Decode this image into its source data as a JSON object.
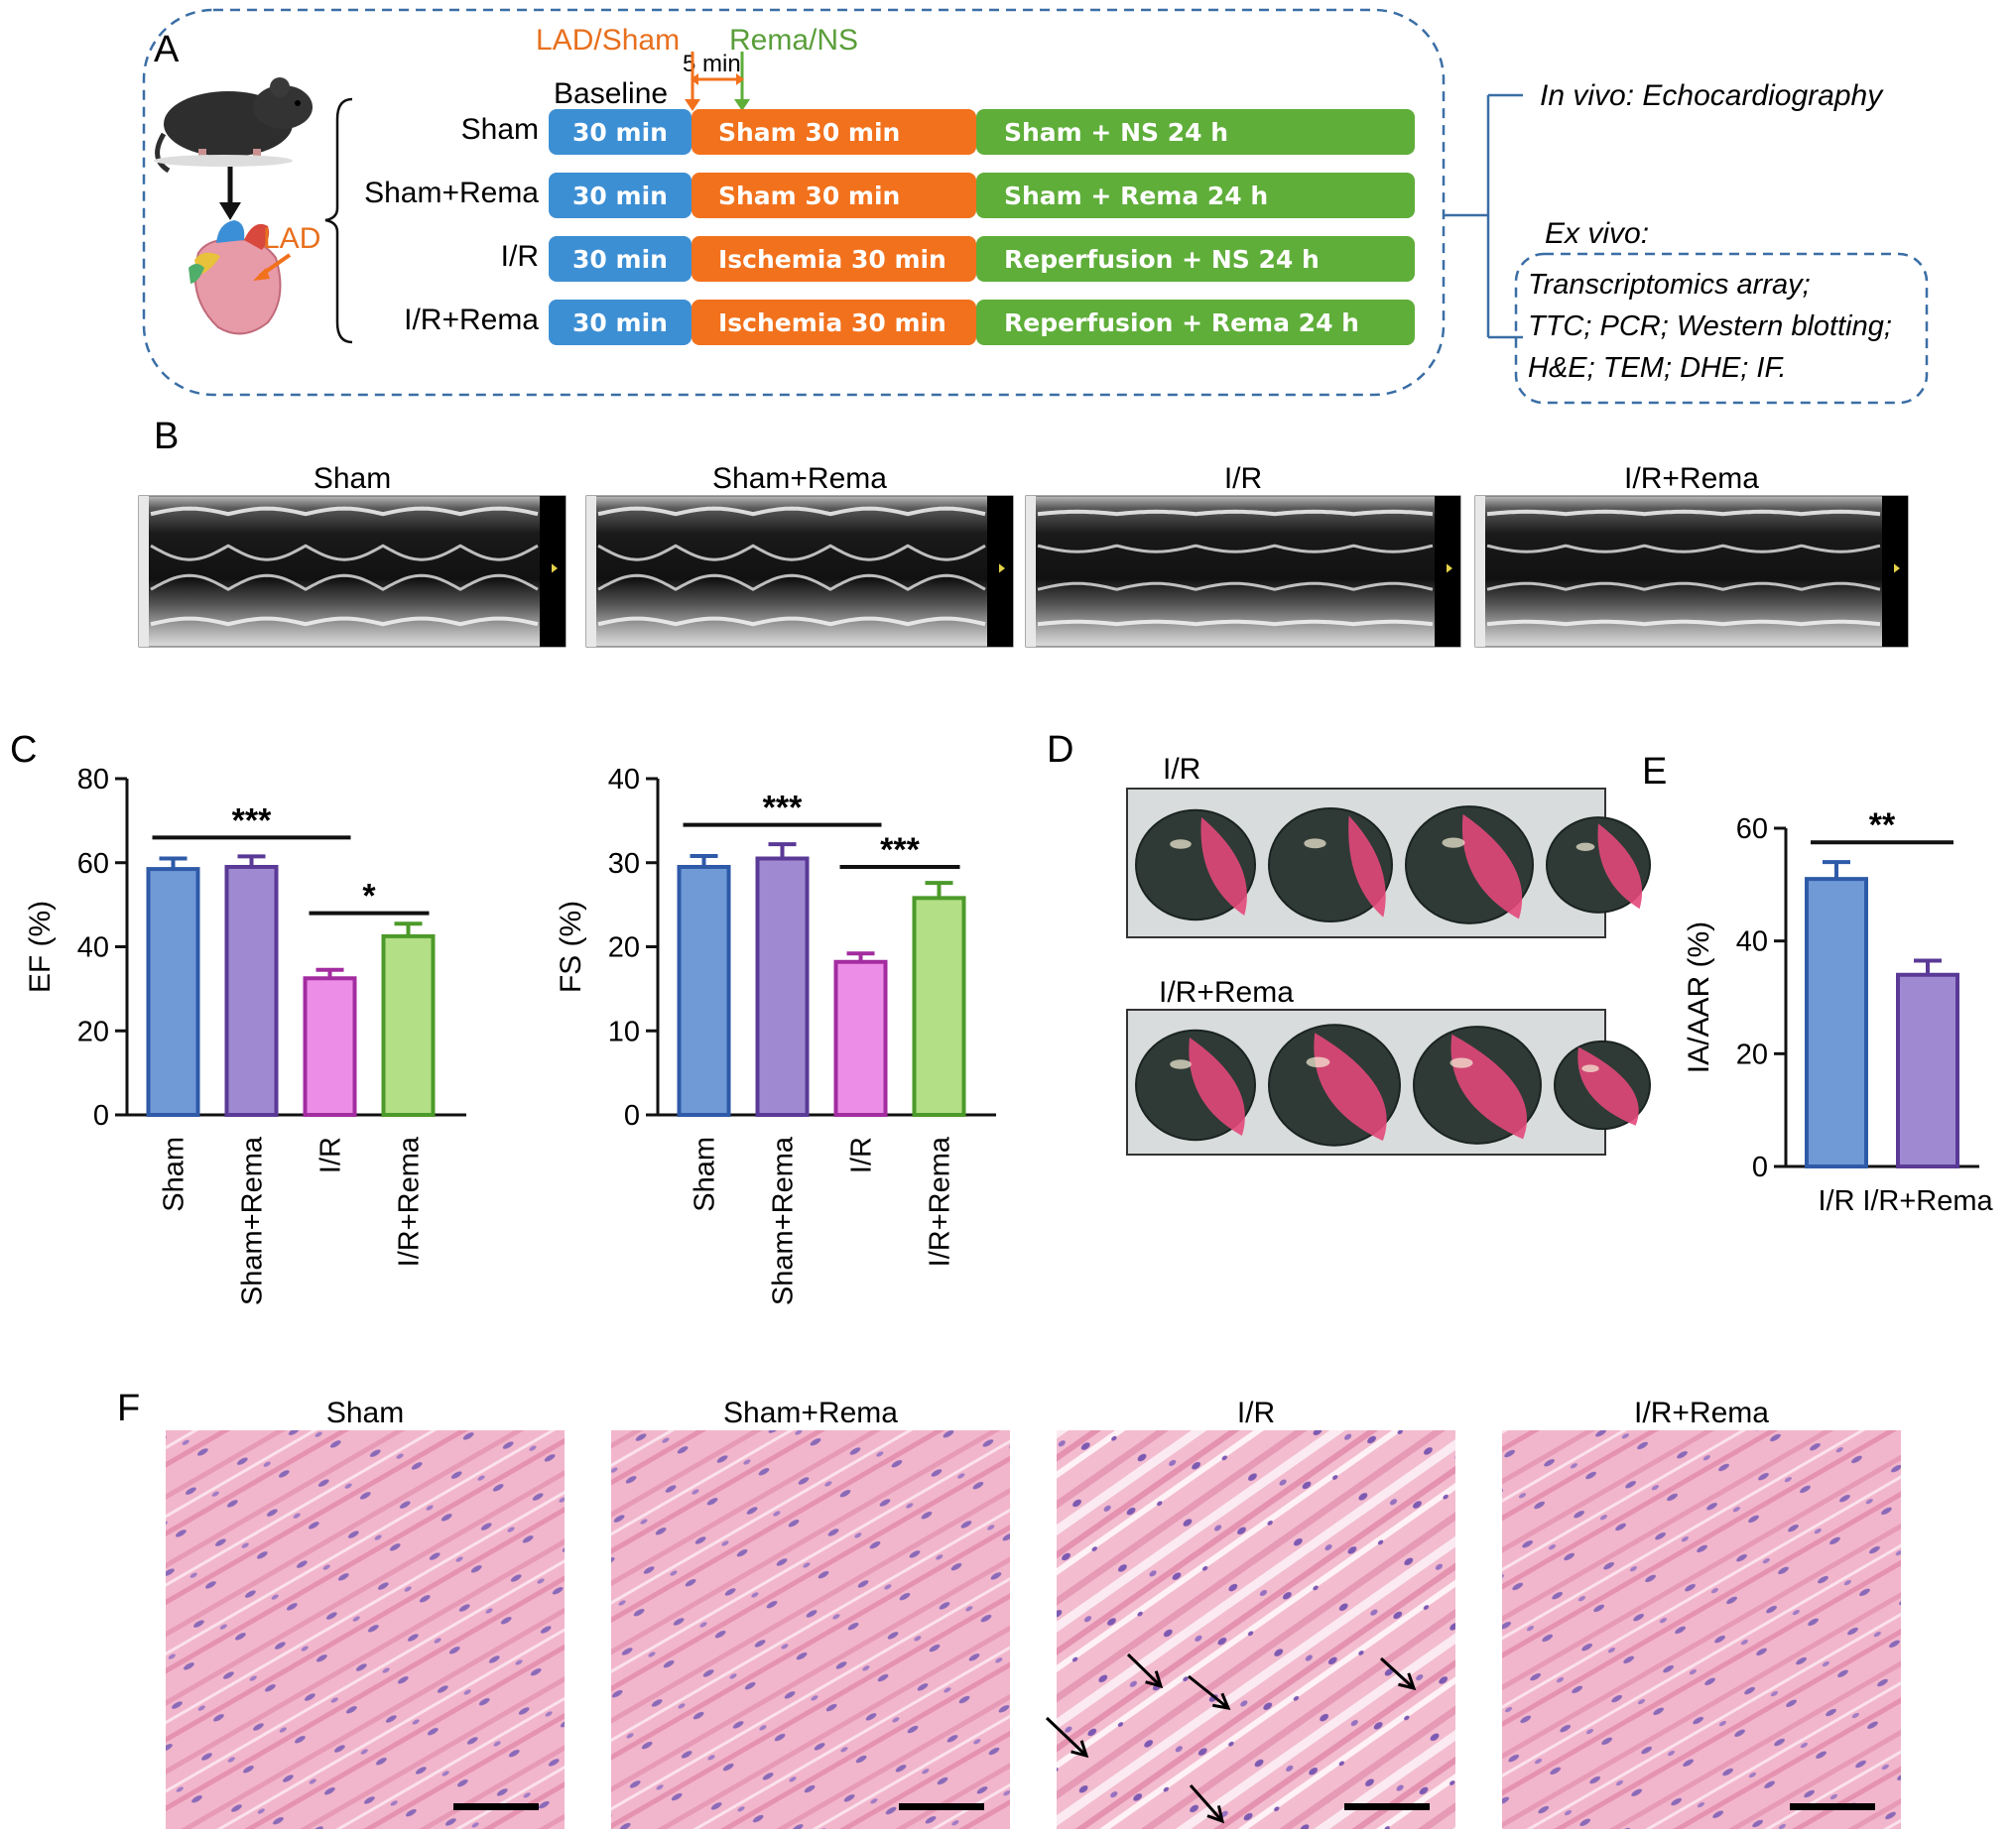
{
  "colors": {
    "blue": "#3d8fd4",
    "orange": "#f2711c",
    "green": "#5fae3a",
    "orange_text": "#e8701e",
    "green_text": "#5a9e3a",
    "dash": "#3a6ea5",
    "bar_blue_fill": "#6f9ad6",
    "bar_blue_edge": "#2e5aa8",
    "bar_purple_fill": "#9f8ad2",
    "bar_purple_edge": "#5a3a96",
    "bar_pink_fill": "#ec8ee8",
    "bar_pink_edge": "#a22ca0",
    "bar_green_fill": "#b3df86",
    "bar_green_edge": "#4c9a2a"
  },
  "panelA": {
    "letter": "A",
    "lad_sham": "LAD/Sham",
    "rema_ns": "Rema/NS",
    "five_min": "5 min",
    "baseline": "Baseline",
    "lad": "LAD",
    "rows": [
      {
        "label": "Sham",
        "baseline": "30 min",
        "stage2": "Sham 30 min",
        "stage3": "Sham + NS  24 h"
      },
      {
        "label": "Sham+Rema",
        "baseline": "30 min",
        "stage2": "Sham 30 min",
        "stage3": "Sham + Rema  24 h"
      },
      {
        "label": "I/R",
        "baseline": "30 min",
        "stage2": "Ischemia 30 min",
        "stage3": "Reperfusion + NS  24 h"
      },
      {
        "label": "I/R+Rema",
        "baseline": "30 min",
        "stage2": "Ischemia 30 min",
        "stage3": "Reperfusion + Rema 24 h"
      }
    ],
    "in_vivo": "In vivo: Echocardiography",
    "ex_vivo": "Ex vivo:",
    "ex_vivo_items": [
      "Transcriptomics array;",
      "TTC; PCR; Western blotting;",
      "H&E; TEM; DHE; IF."
    ]
  },
  "panelB": {
    "letter": "B",
    "titles": [
      "Sham",
      "Sham+Rema",
      "I/R",
      "I/R+Rema"
    ]
  },
  "panelC": {
    "letter": "C"
  },
  "panelD": {
    "letter": "D",
    "labels": [
      "I/R",
      "I/R+Rema"
    ]
  },
  "panelE": {
    "letter": "E"
  },
  "panelF": {
    "letter": "F",
    "titles": [
      "Sham",
      "Sham+Rema",
      "I/R",
      "I/R+Rema"
    ]
  },
  "chart_data": [
    {
      "type": "bar",
      "ylabel": "EF (%)",
      "categories": [
        "Sham",
        "Sham+Rema",
        "I/R",
        "I/R+Rema"
      ],
      "values": [
        58.5,
        59,
        32.5,
        42.5
      ],
      "errors": [
        2.5,
        2.5,
        2,
        3
      ],
      "ylim": [
        0,
        80
      ],
      "yticks": [
        0,
        20,
        40,
        60,
        80
      ],
      "significance": [
        {
          "from": 0,
          "to": 2,
          "label": "***",
          "y": 66
        },
        {
          "from": 2,
          "to": 3,
          "label": "*",
          "y": 48
        }
      ]
    },
    {
      "type": "bar",
      "ylabel": "FS (%)",
      "categories": [
        "Sham",
        "Sham+Rema",
        "I/R",
        "I/R+Rema"
      ],
      "values": [
        29.5,
        30.5,
        18.2,
        25.8
      ],
      "errors": [
        1.3,
        1.7,
        1.0,
        1.8
      ],
      "ylim": [
        0,
        40
      ],
      "yticks": [
        0,
        10,
        20,
        30,
        40
      ],
      "significance": [
        {
          "from": 0,
          "to": 2,
          "label": "***",
          "y": 34.5
        },
        {
          "from": 2,
          "to": 3,
          "label": "***",
          "y": 29.5
        }
      ]
    },
    {
      "type": "bar",
      "ylabel": "IA/AAR (%)",
      "categories": [
        "I/R",
        "I/R+Rema"
      ],
      "values": [
        51,
        34
      ],
      "errors": [
        3,
        2.5
      ],
      "ylim": [
        0,
        60
      ],
      "yticks": [
        0,
        20,
        40,
        60
      ],
      "significance": [
        {
          "from": 0,
          "to": 1,
          "label": "**",
          "y": 57.5
        }
      ]
    }
  ]
}
